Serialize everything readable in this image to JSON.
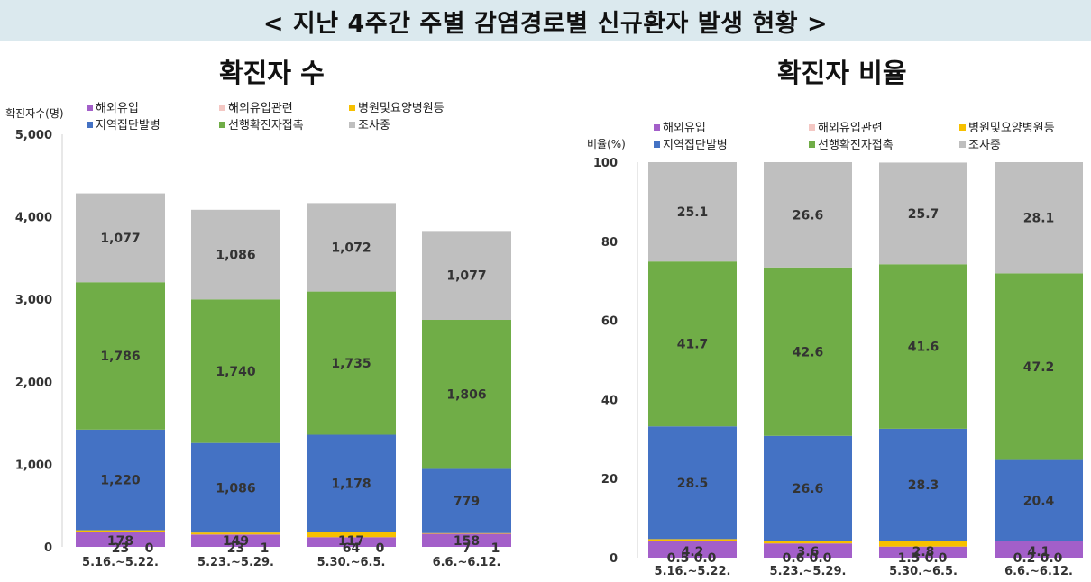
{
  "banner": {
    "title": "< 지난 4주간 주별 감염경로별 신규환자 발생 현황 >"
  },
  "colors": {
    "overseas": "#a35fc9",
    "overseas_related": "#f4c7c3",
    "hospital": "#f7c000",
    "regional_cluster": "#4472c4",
    "prior_contact": "#70ad47",
    "investigating": "#bfbfbf"
  },
  "chart_data": [
    {
      "type": "bar",
      "stacked": true,
      "title": "확진자 수",
      "ylabel": "확진자수(명)",
      "ylim": [
        0,
        5000
      ],
      "yticks": [
        "0",
        "1,000",
        "2,000",
        "3,000",
        "4,000",
        "5,000"
      ],
      "ytick_values": [
        0,
        1000,
        2000,
        3000,
        4000,
        5000
      ],
      "categories": [
        "5.16.~5.22.",
        "5.23.~5.29.",
        "5.30.~6.5.",
        "6.6.~6.12."
      ],
      "legend": [
        "해외유입",
        "해외유입관련",
        "병원및요양병원등",
        "지역집단발병",
        "선행확진자접촉",
        "조사중"
      ],
      "series": [
        {
          "name": "해외유입",
          "key": "overseas",
          "values": [
            178,
            149,
            117,
            158
          ],
          "labels": [
            "178",
            "149",
            "117",
            "158"
          ]
        },
        {
          "name": "해외유입관련",
          "key": "overseas_related",
          "values": [
            0,
            1,
            0,
            1
          ],
          "labels": [
            "0",
            "1",
            "0",
            "1"
          ]
        },
        {
          "name": "병원및요양병원등",
          "key": "hospital",
          "values": [
            23,
            23,
            64,
            7
          ],
          "labels": [
            "23",
            "23",
            "64",
            "7"
          ]
        },
        {
          "name": "지역집단발병",
          "key": "regional_cluster",
          "values": [
            1220,
            1086,
            1178,
            779
          ],
          "labels": [
            "1,220",
            "1,086",
            "1,178",
            "779"
          ]
        },
        {
          "name": "선행확진자접촉",
          "key": "prior_contact",
          "values": [
            1786,
            1740,
            1735,
            1806
          ],
          "labels": [
            "1,786",
            "1,740",
            "1,735",
            "1,806"
          ]
        },
        {
          "name": "조사중",
          "key": "investigating",
          "values": [
            1077,
            1086,
            1072,
            1077
          ],
          "labels": [
            "1,077",
            "1,086",
            "1,072",
            "1,077"
          ]
        }
      ]
    },
    {
      "type": "bar",
      "stacked": true,
      "title": "확진자 비율",
      "ylabel": "비율(%)",
      "ylim": [
        0,
        100
      ],
      "yticks": [
        "0",
        "20",
        "40",
        "60",
        "80",
        "100"
      ],
      "ytick_values": [
        0,
        20,
        40,
        60,
        80,
        100
      ],
      "categories": [
        "5.16.~5.22.",
        "5.23.~5.29.",
        "5.30.~6.5.",
        "6.6.~6.12."
      ],
      "legend": [
        "해외유입",
        "해외유입관련",
        "병원및요양병원등",
        "지역집단발병",
        "선행확진자접촉",
        "조사중"
      ],
      "series": [
        {
          "name": "해외유입",
          "key": "overseas",
          "values": [
            4.2,
            3.6,
            2.8,
            4.1
          ],
          "labels": [
            "4.2",
            "3.6",
            "2.8",
            "4.1"
          ]
        },
        {
          "name": "해외유입관련",
          "key": "overseas_related",
          "values": [
            0.0,
            0.0,
            0.0,
            0.0
          ],
          "labels": [
            "0.0",
            "0.0",
            "0.0",
            "0.0"
          ]
        },
        {
          "name": "병원및요양병원등",
          "key": "hospital",
          "values": [
            0.5,
            0.6,
            1.5,
            0.2
          ],
          "labels": [
            "0.5",
            "0.6",
            "1.5",
            "0.2"
          ]
        },
        {
          "name": "지역집단발병",
          "key": "regional_cluster",
          "values": [
            28.5,
            26.6,
            28.3,
            20.4
          ],
          "labels": [
            "28.5",
            "26.6",
            "28.3",
            "20.4"
          ]
        },
        {
          "name": "선행확진자접촉",
          "key": "prior_contact",
          "values": [
            41.7,
            42.6,
            41.6,
            47.2
          ],
          "labels": [
            "41.7",
            "42.6",
            "41.6",
            "47.2"
          ]
        },
        {
          "name": "조사중",
          "key": "investigating",
          "values": [
            25.1,
            26.6,
            25.7,
            28.1
          ],
          "labels": [
            "25.1",
            "26.6",
            "25.7",
            "28.1"
          ]
        }
      ]
    }
  ]
}
